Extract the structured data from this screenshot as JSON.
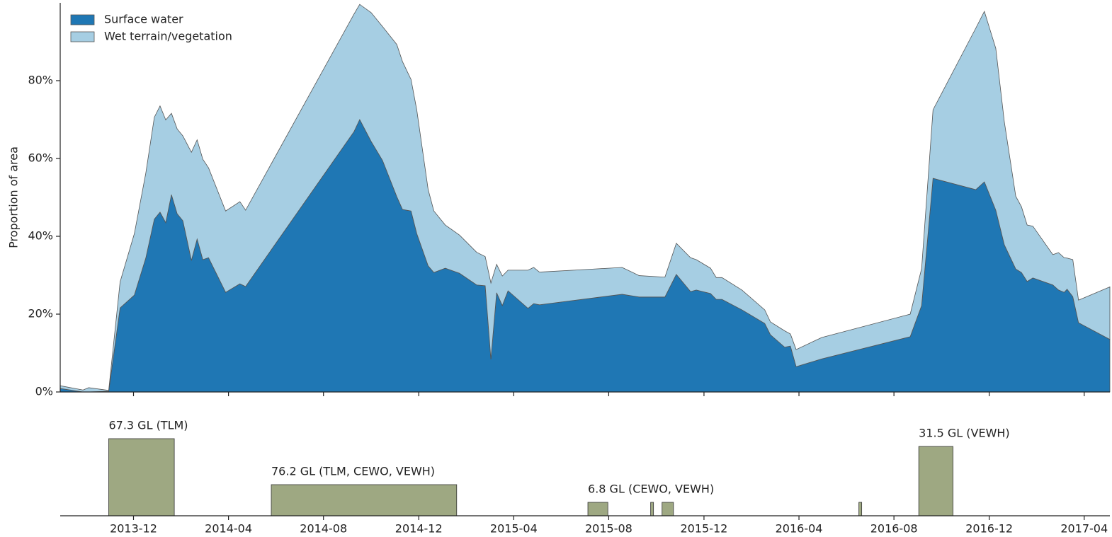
{
  "chart_data": [
    {
      "type": "stacked_area",
      "ylabel": "Proportion of area",
      "legend": "upper left",
      "x": [
        2013.66,
        2013.74,
        2013.76,
        2013.83,
        2013.87,
        2013.92,
        2013.96,
        2013.99,
        2014.01,
        2014.03,
        2014.05,
        2014.07,
        2014.09,
        2014.12,
        2014.14,
        2014.16,
        2014.18,
        2014.24,
        2014.29,
        2014.31,
        2014.69,
        2014.71,
        2014.75,
        2014.79,
        2014.84,
        2014.86,
        2014.89,
        2014.91,
        2014.95,
        2014.97,
        2015.01,
        2015.06,
        2015.12,
        2015.15,
        2015.17,
        2015.19,
        2015.21,
        2015.23,
        2015.3,
        2015.32,
        2015.34,
        2015.63,
        2015.69,
        2015.78,
        2015.82,
        2015.87,
        2015.89,
        2015.94,
        2015.96,
        2015.98,
        2016.05,
        2016.13,
        2016.15,
        2016.2,
        2016.22,
        2016.24,
        2016.33,
        2016.64,
        2016.68,
        2016.72,
        2016.87,
        2016.9,
        2016.94,
        2016.97,
        2017.01,
        2017.03,
        2017.05,
        2017.07,
        2017.14,
        2017.16,
        2017.18,
        2017.19,
        2017.21,
        2017.23,
        2017.34
      ],
      "series": [
        {
          "name": "Surface water",
          "color": "#1f77b4",
          "values": [
            0.9,
            0,
            0,
            0.2,
            21.6,
            24.9,
            34.4,
            44.4,
            46.2,
            43.5,
            50.7,
            45.8,
            44.0,
            33.8,
            39.3,
            34.0,
            34.5,
            25.6,
            27.8,
            27.1,
            66.9,
            70.0,
            64.4,
            59.5,
            50.2,
            46.9,
            46.5,
            40.7,
            32.4,
            30.7,
            31.8,
            30.5,
            27.5,
            27.3,
            8.4,
            25.5,
            22.2,
            26.0,
            21.5,
            22.7,
            22.4,
            25.1,
            24.4,
            24.4,
            30.2,
            25.8,
            26.2,
            25.3,
            23.8,
            23.8,
            21.1,
            17.6,
            14.7,
            11.5,
            11.8,
            6.5,
            8.5,
            14.2,
            22.2,
            54.9,
            52.0,
            54.0,
            46.7,
            37.8,
            31.6,
            30.7,
            28.4,
            29.3,
            27.5,
            26.2,
            25.6,
            26.4,
            24.5,
            17.8,
            13.5
          ]
        },
        {
          "name": "Wet terrain/vegetation",
          "color": "#a6cee3",
          "values": [
            0.7,
            0.5,
            1.1,
            0.2,
            6.7,
            15.8,
            21.8,
            26.2,
            27.3,
            26.4,
            20.9,
            21.8,
            21.8,
            27.8,
            25.5,
            25.8,
            23.1,
            20.9,
            21.1,
            19.6,
            30.2,
            29.6,
            33.1,
            34.4,
            39.1,
            38.0,
            33.8,
            31.8,
            19.6,
            15.8,
            11.1,
            9.8,
            8.4,
            7.5,
            19.6,
            7.3,
            7.6,
            5.3,
            9.8,
            9.3,
            8.4,
            6.9,
            5.5,
            5.1,
            8.0,
            8.7,
            7.8,
            6.5,
            5.6,
            5.6,
            5.1,
            3.5,
            3.3,
            4.2,
            3.1,
            4.4,
            5.5,
            5.8,
            9.5,
            17.6,
            41.5,
            43.8,
            41.6,
            31.6,
            18.7,
            16.9,
            14.5,
            13.3,
            7.8,
            9.6,
            8.9,
            8.0,
            9.5,
            5.8,
            13.5
          ]
        }
      ],
      "xlim": [
        2013.66,
        2017.34
      ],
      "xticks": [
        2013.917,
        2014.25,
        2014.583,
        2014.917,
        2015.25,
        2015.583,
        2015.917,
        2016.25,
        2016.583,
        2016.917,
        2017.25
      ],
      "ylim": [
        0,
        100
      ],
      "yticks": [
        {
          "value": 0,
          "label": "0%"
        },
        {
          "value": 20,
          "label": "20%"
        },
        {
          "value": 40,
          "label": "40%"
        },
        {
          "value": 60,
          "label": "60%"
        },
        {
          "value": 80,
          "label": "80%"
        }
      ]
    },
    {
      "type": "event_bar",
      "color": "#9ea882",
      "x_start": [
        2013.83,
        2014.4,
        2015.51,
        2015.73,
        2015.77,
        2016.46,
        2016.67
      ],
      "x_end": [
        2014.06,
        2015.05,
        2015.58,
        2015.74,
        2015.81,
        2016.47,
        2016.79
      ],
      "values": [
        109,
        44,
        19,
        19,
        19,
        19,
        98
      ],
      "annotations": [
        "67.3 GL (TLM)",
        "76.2 GL (TLM, CEWO, VEWH)",
        "6.8 GL (CEWO, VEWH)",
        null,
        null,
        null,
        "31.5 GL (VEWH)"
      ],
      "xlim": [
        2013.66,
        2017.34
      ],
      "ylim": [
        0,
        120
      ],
      "xticks": [
        {
          "value": 2013.917,
          "label": "2013-12"
        },
        {
          "value": 2014.25,
          "label": "2014-04"
        },
        {
          "value": 2014.583,
          "label": "2014-08"
        },
        {
          "value": 2014.917,
          "label": "2014-12"
        },
        {
          "value": 2015.25,
          "label": "2015-04"
        },
        {
          "value": 2015.583,
          "label": "2015-08"
        },
        {
          "value": 2015.917,
          "label": "2015-12"
        },
        {
          "value": 2016.25,
          "label": "2016-04"
        },
        {
          "value": 2016.583,
          "label": "2016-08"
        },
        {
          "value": 2016.917,
          "label": "2016-12"
        },
        {
          "value": 2017.25,
          "label": "2017-04"
        }
      ]
    }
  ]
}
